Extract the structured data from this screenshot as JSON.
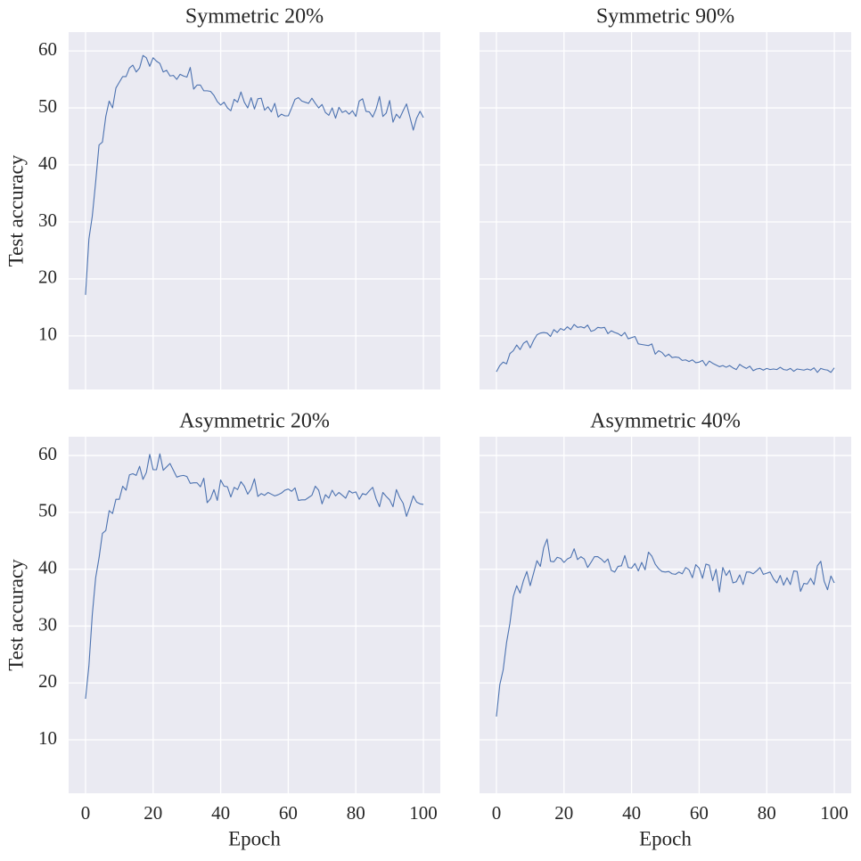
{
  "chart_data": [
    {
      "type": "line",
      "title": "Symmetric 20%",
      "y_label": "Test accuracy",
      "xtick_labels": false,
      "ytick_labels": true,
      "grid": true,
      "color": "#4c72b0",
      "xlim": [
        -5,
        105
      ],
      "ylim": [
        0.6,
        63.3
      ],
      "xticks": [
        0,
        20,
        40,
        60,
        80,
        100
      ],
      "yticks": [
        10,
        20,
        30,
        40,
        50,
        60
      ],
      "x": [
        0,
        1,
        2,
        3,
        4,
        5,
        6,
        7,
        8,
        9,
        10,
        11,
        12,
        13,
        14,
        15,
        16,
        17,
        18,
        19,
        20,
        21,
        22,
        23,
        24,
        25,
        26,
        27,
        28,
        29,
        30,
        31,
        32,
        33,
        34,
        35,
        36,
        37,
        38,
        39,
        40,
        41,
        42,
        43,
        44,
        45,
        46,
        47,
        48,
        49,
        50,
        51,
        52,
        53,
        54,
        55,
        56,
        57,
        58,
        59,
        60,
        61,
        62,
        63,
        64,
        65,
        66,
        67,
        68,
        69,
        70,
        71,
        72,
        73,
        74,
        75,
        76,
        77,
        78,
        79,
        80,
        81,
        82,
        83,
        84,
        85,
        86,
        87,
        88,
        89,
        90,
        91,
        92,
        93,
        94,
        95,
        96,
        97,
        98,
        99,
        100
      ],
      "values": [
        17.2,
        27,
        31,
        37,
        43.5,
        44,
        48.5,
        51.2,
        50,
        53.5,
        54.5,
        55.5,
        55.5,
        57,
        57.5,
        56.3,
        57,
        59.2,
        58.8,
        57.3,
        58.8,
        58.2,
        57.8,
        56.3,
        56.6,
        55.6,
        55.7,
        55,
        55.9,
        55.6,
        55.4,
        57.1,
        53.3,
        54,
        54,
        53,
        53,
        52.9,
        52.2,
        51.1,
        50.5,
        51,
        50,
        49.5,
        51.5,
        51,
        52.8,
        51,
        50,
        51.8,
        49.8,
        51.6,
        51.7,
        49.6,
        50.2,
        49.3,
        50.8,
        48.4,
        48.9,
        48.6,
        48.6,
        50,
        51.5,
        51.8,
        51.2,
        51,
        50.8,
        51.7,
        50.8,
        50,
        50.6,
        49.2,
        48.7,
        50,
        48.2,
        50.1,
        49.2,
        49.5,
        48.9,
        49.5,
        48.5,
        51.2,
        51.6,
        49.4,
        49.3,
        48.4,
        49.8,
        52,
        48.5,
        49.1,
        51.3,
        47.5,
        48.9,
        48.2,
        49.5,
        50.7,
        48.4,
        46.1,
        48.2,
        49.4,
        48.3
      ]
    },
    {
      "type": "line",
      "title": "Symmetric 90%",
      "xtick_labels": false,
      "ytick_labels": false,
      "grid": true,
      "color": "#4c72b0",
      "xlim": [
        -5,
        105
      ],
      "ylim": [
        0.6,
        63.3
      ],
      "xticks": [
        0,
        20,
        40,
        60,
        80,
        100
      ],
      "yticks": [
        10,
        20,
        30,
        40,
        50,
        60
      ],
      "x": [
        0,
        1,
        2,
        3,
        4,
        5,
        6,
        7,
        8,
        9,
        10,
        11,
        12,
        13,
        14,
        15,
        16,
        17,
        18,
        19,
        20,
        21,
        22,
        23,
        24,
        25,
        26,
        27,
        28,
        29,
        30,
        31,
        32,
        33,
        34,
        35,
        36,
        37,
        38,
        39,
        40,
        41,
        42,
        43,
        44,
        45,
        46,
        47,
        48,
        49,
        50,
        51,
        52,
        53,
        54,
        55,
        56,
        57,
        58,
        59,
        60,
        61,
        62,
        63,
        64,
        65,
        66,
        67,
        68,
        69,
        70,
        71,
        72,
        73,
        74,
        75,
        76,
        77,
        78,
        79,
        80,
        81,
        82,
        83,
        84,
        85,
        86,
        87,
        88,
        89,
        90,
        91,
        92,
        93,
        94,
        95,
        96,
        97,
        98,
        99,
        100
      ],
      "values": [
        3.7,
        4.8,
        5.4,
        5.1,
        6.9,
        7.4,
        8.4,
        7.6,
        8.7,
        9.1,
        7.9,
        9.2,
        10.2,
        10.5,
        10.6,
        10.5,
        9.9,
        11.1,
        10.6,
        11.3,
        11,
        11.6,
        11.1,
        12,
        11.5,
        11.6,
        11.4,
        11.9,
        10.8,
        11,
        11.5,
        11.4,
        11.5,
        10.4,
        10.9,
        10.6,
        10.4,
        10,
        10.6,
        9.5,
        9.7,
        9.9,
        8.6,
        8.5,
        8.4,
        8.3,
        8.6,
        6.8,
        7.4,
        7.1,
        6.4,
        6.8,
        6.2,
        6.3,
        6.2,
        5.7,
        5.8,
        5.5,
        5.8,
        5.3,
        5.4,
        5.7,
        4.8,
        5.6,
        5.2,
        4.9,
        4.6,
        4.8,
        4.5,
        4.8,
        4.4,
        4.1,
        5,
        4.6,
        4.3,
        4.7,
        3.9,
        4.2,
        4.3,
        4,
        4.3,
        4.1,
        4.2,
        4.1,
        4.5,
        4.1,
        4,
        4.3,
        3.8,
        4.2,
        4.1,
        4,
        4.2,
        4,
        4.4,
        3.6,
        4.3,
        4.1,
        4,
        3.6,
        4.4
      ]
    },
    {
      "type": "line",
      "title": "Asymmetric 20%",
      "y_label": "Test accuracy",
      "x_label": "Epoch",
      "xtick_labels": true,
      "ytick_labels": true,
      "grid": true,
      "color": "#4c72b0",
      "xlim": [
        -5,
        105
      ],
      "ylim": [
        0.6,
        63.3
      ],
      "xticks": [
        0,
        20,
        40,
        60,
        80,
        100
      ],
      "yticks": [
        10,
        20,
        30,
        40,
        50,
        60
      ],
      "x": [
        0,
        1,
        2,
        3,
        4,
        5,
        6,
        7,
        8,
        9,
        10,
        11,
        12,
        13,
        14,
        15,
        16,
        17,
        18,
        19,
        20,
        21,
        22,
        23,
        24,
        25,
        26,
        27,
        28,
        29,
        30,
        31,
        32,
        33,
        34,
        35,
        36,
        37,
        38,
        39,
        40,
        41,
        42,
        43,
        44,
        45,
        46,
        47,
        48,
        49,
        50,
        51,
        52,
        53,
        54,
        55,
        56,
        57,
        58,
        59,
        60,
        61,
        62,
        63,
        64,
        65,
        66,
        67,
        68,
        69,
        70,
        71,
        72,
        73,
        74,
        75,
        76,
        77,
        78,
        79,
        80,
        81,
        82,
        83,
        84,
        85,
        86,
        87,
        88,
        89,
        90,
        91,
        92,
        93,
        94,
        95,
        96,
        97,
        98,
        99,
        100
      ],
      "values": [
        17.2,
        23,
        32,
        38.5,
        42,
        46.3,
        46.8,
        50.3,
        49.8,
        52.3,
        52.3,
        54.6,
        53.9,
        56.6,
        56.8,
        56.5,
        58.1,
        55.8,
        57,
        60.2,
        57.5,
        57.5,
        60.3,
        57.4,
        58,
        58.6,
        57.4,
        56.2,
        56.4,
        56.5,
        56.3,
        55.1,
        55.2,
        55.2,
        54.5,
        56,
        51.7,
        52.4,
        54,
        52.1,
        55.7,
        54.6,
        54.5,
        52.7,
        54.4,
        54,
        55.4,
        54.6,
        53.2,
        54.1,
        55.9,
        52.8,
        53.3,
        53,
        53.5,
        53.2,
        52.9,
        53.1,
        53.4,
        53.9,
        54.1,
        53.7,
        54.3,
        52.1,
        52.2,
        52.2,
        52.6,
        53,
        54.6,
        53.9,
        51.5,
        53.1,
        52.5,
        53.9,
        52.9,
        53.5,
        53,
        52.5,
        53.8,
        53.4,
        53.6,
        52.3,
        53.3,
        53.1,
        53.8,
        54.4,
        52.4,
        51,
        53.5,
        52.8,
        52.2,
        51,
        54,
        52.6,
        51.6,
        49.3,
        51,
        52.9,
        51.8,
        51.5,
        51.4
      ]
    },
    {
      "type": "line",
      "title": "Asymmetric 40%",
      "x_label": "Epoch",
      "xtick_labels": true,
      "ytick_labels": false,
      "grid": true,
      "color": "#4c72b0",
      "xlim": [
        -5,
        105
      ],
      "ylim": [
        0.6,
        63.3
      ],
      "xticks": [
        0,
        20,
        40,
        60,
        80,
        100
      ],
      "yticks": [
        10,
        20,
        30,
        40,
        50,
        60
      ],
      "x": [
        0,
        1,
        2,
        3,
        4,
        5,
        6,
        7,
        8,
        9,
        10,
        11,
        12,
        13,
        14,
        15,
        16,
        17,
        18,
        19,
        20,
        21,
        22,
        23,
        24,
        25,
        26,
        27,
        28,
        29,
        30,
        31,
        32,
        33,
        34,
        35,
        36,
        37,
        38,
        39,
        40,
        41,
        42,
        43,
        44,
        45,
        46,
        47,
        48,
        49,
        50,
        51,
        52,
        53,
        54,
        55,
        56,
        57,
        58,
        59,
        60,
        61,
        62,
        63,
        64,
        65,
        66,
        67,
        68,
        69,
        70,
        71,
        72,
        73,
        74,
        75,
        76,
        77,
        78,
        79,
        80,
        81,
        82,
        83,
        84,
        85,
        86,
        87,
        88,
        89,
        90,
        91,
        92,
        93,
        94,
        95,
        96,
        97,
        98,
        99,
        100
      ],
      "values": [
        14.1,
        19.7,
        22.3,
        27.1,
        30.5,
        35.2,
        37.1,
        35.8,
        38,
        39.6,
        37.1,
        39.3,
        41.5,
        40.5,
        43.8,
        45.3,
        41.4,
        41.3,
        42.1,
        41.9,
        41.2,
        41.8,
        42.1,
        43.6,
        41.7,
        42.2,
        41.8,
        40.3,
        41.2,
        42.2,
        42.2,
        41.8,
        41.2,
        41.8,
        39.8,
        39.5,
        40.5,
        40.6,
        42.4,
        40.3,
        40.2,
        41,
        39.7,
        41.2,
        39.9,
        43,
        42.3,
        40.9,
        40.1,
        39.6,
        39.5,
        39.6,
        39.2,
        39.1,
        39.5,
        39.2,
        40.3,
        39.9,
        38.5,
        40.8,
        40.2,
        38.4,
        40.9,
        40.7,
        38,
        40,
        36,
        40.3,
        38.9,
        39.8,
        37.6,
        37.8,
        39,
        37.3,
        39.5,
        39.5,
        39.2,
        39.7,
        40.3,
        39.1,
        39.3,
        39.5,
        38.3,
        37.6,
        38.9,
        37.2,
        38.5,
        37.3,
        39.7,
        39.6,
        36.1,
        37.5,
        37.4,
        38.4,
        37.3,
        40.6,
        41.4,
        37.9,
        36.4,
        38.8,
        37.6
      ]
    }
  ]
}
